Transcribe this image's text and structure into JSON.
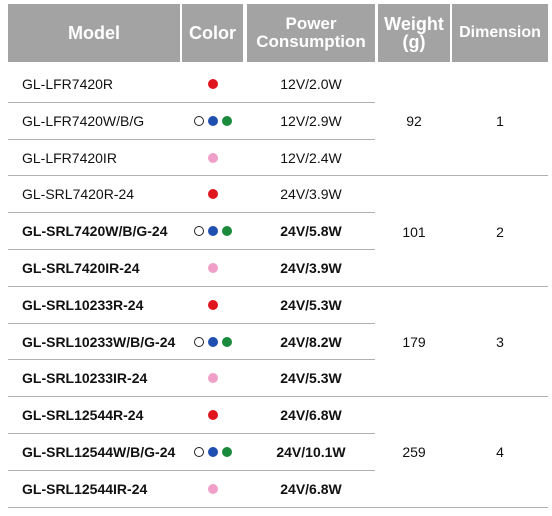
{
  "header": [
    "Model",
    "Color",
    "Power Consumption",
    "Weight (g)",
    "Dimension"
  ],
  "groups": [
    {
      "weight": 92,
      "dimension": 1,
      "rows": [
        {
          "model": "GL-LFR7420R",
          "power": "12V/2.0W"
        },
        {
          "model": "GL-LFR7420W/B/G",
          "power": "12V/2.9W"
        },
        {
          "model": "GL-LFR7420IR",
          "power": "12V/2.4W"
        }
      ]
    },
    {
      "weight": 101,
      "dimension": 2,
      "rows": [
        {
          "model": "GL-SRL7420R-24",
          "power": "24V/3.9W"
        },
        {
          "model": "GL-SRL7420W/B/G-24",
          "power": "24V/5.8W"
        },
        {
          "model": "GL-SRL7420IR-24",
          "power": "24V/3.9W"
        }
      ]
    },
    {
      "weight": 179,
      "dimension": 3,
      "rows": [
        {
          "model": "GL-SRL10233R-24",
          "power": "24V/5.3W"
        },
        {
          "model": "GL-SRL10233W/B/G-24",
          "power": "24V/8.2W"
        },
        {
          "model": "GL-SRL10233IR-24",
          "power": "24V/5.3W"
        }
      ]
    },
    {
      "weight": 259,
      "dimension": 4,
      "rows": [
        {
          "model": "GL-SRL12544R-24",
          "power": "24V/6.8W"
        },
        {
          "model": "GL-SRL12544W/B/G-24",
          "power": "24V/10.1W"
        },
        {
          "model": "GL-SRL12544IR-24",
          "power": "24V/6.8W"
        }
      ]
    }
  ]
}
